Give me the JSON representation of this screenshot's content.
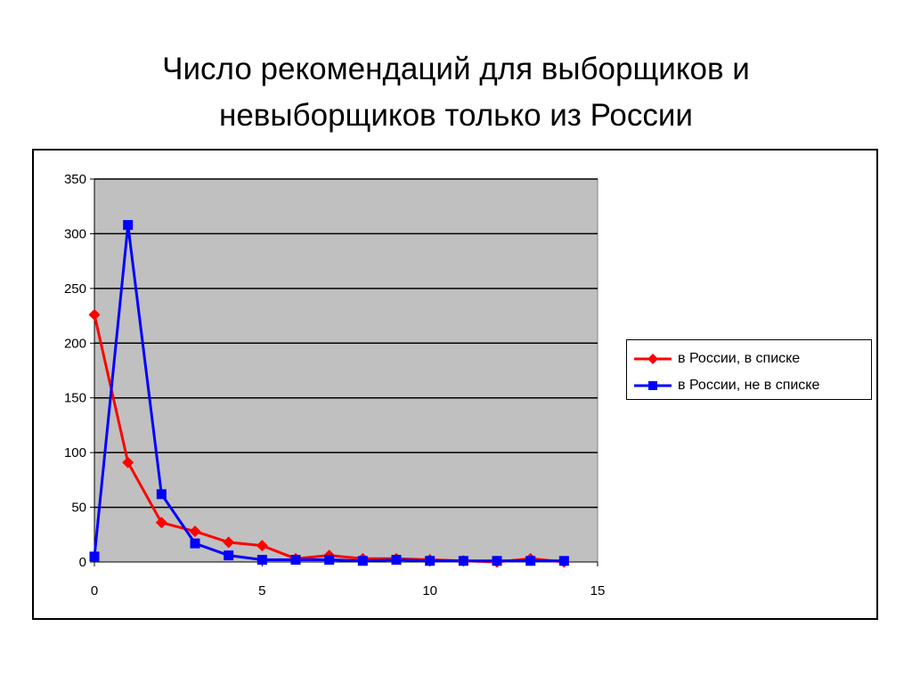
{
  "title": {
    "line1": "Число рекомендаций для выборщиков и",
    "line2": "невыборщиков только из России"
  },
  "legend": {
    "position": "right",
    "items": [
      {
        "label": "в России, в списке",
        "color": "#ff0000",
        "marker": "diamond"
      },
      {
        "label": "в России, не в списке",
        "color": "#0000ff",
        "marker": "square"
      }
    ]
  },
  "chart_data": {
    "type": "line",
    "title": "Число рекомендаций для выборщиков и невыборщиков только из России",
    "xlabel": "",
    "ylabel": "",
    "xlim": [
      0,
      15
    ],
    "ylim": [
      0,
      350
    ],
    "x_ticks": [
      0,
      5,
      10,
      15
    ],
    "y_ticks": [
      0,
      50,
      100,
      150,
      200,
      250,
      300,
      350
    ],
    "grid": "horizontal",
    "plot_background": "#c0c0c0",
    "series": [
      {
        "name": "в России, в списке",
        "color": "#ff0000",
        "marker": "diamond",
        "x": [
          0,
          1,
          2,
          3,
          4,
          5,
          6,
          7,
          8,
          9,
          10,
          11,
          12,
          13,
          14
        ],
        "y": [
          226,
          91,
          36,
          28,
          18,
          15,
          3,
          6,
          3,
          3,
          2,
          1,
          0,
          3,
          0
        ]
      },
      {
        "name": "в России, не в списке",
        "color": "#0000ff",
        "marker": "square",
        "x": [
          0,
          1,
          2,
          3,
          4,
          5,
          6,
          7,
          8,
          9,
          10,
          11,
          12,
          13,
          14
        ],
        "y": [
          5,
          308,
          62,
          17,
          6,
          2,
          2,
          2,
          1,
          2,
          1,
          1,
          1,
          1,
          1
        ]
      }
    ]
  }
}
